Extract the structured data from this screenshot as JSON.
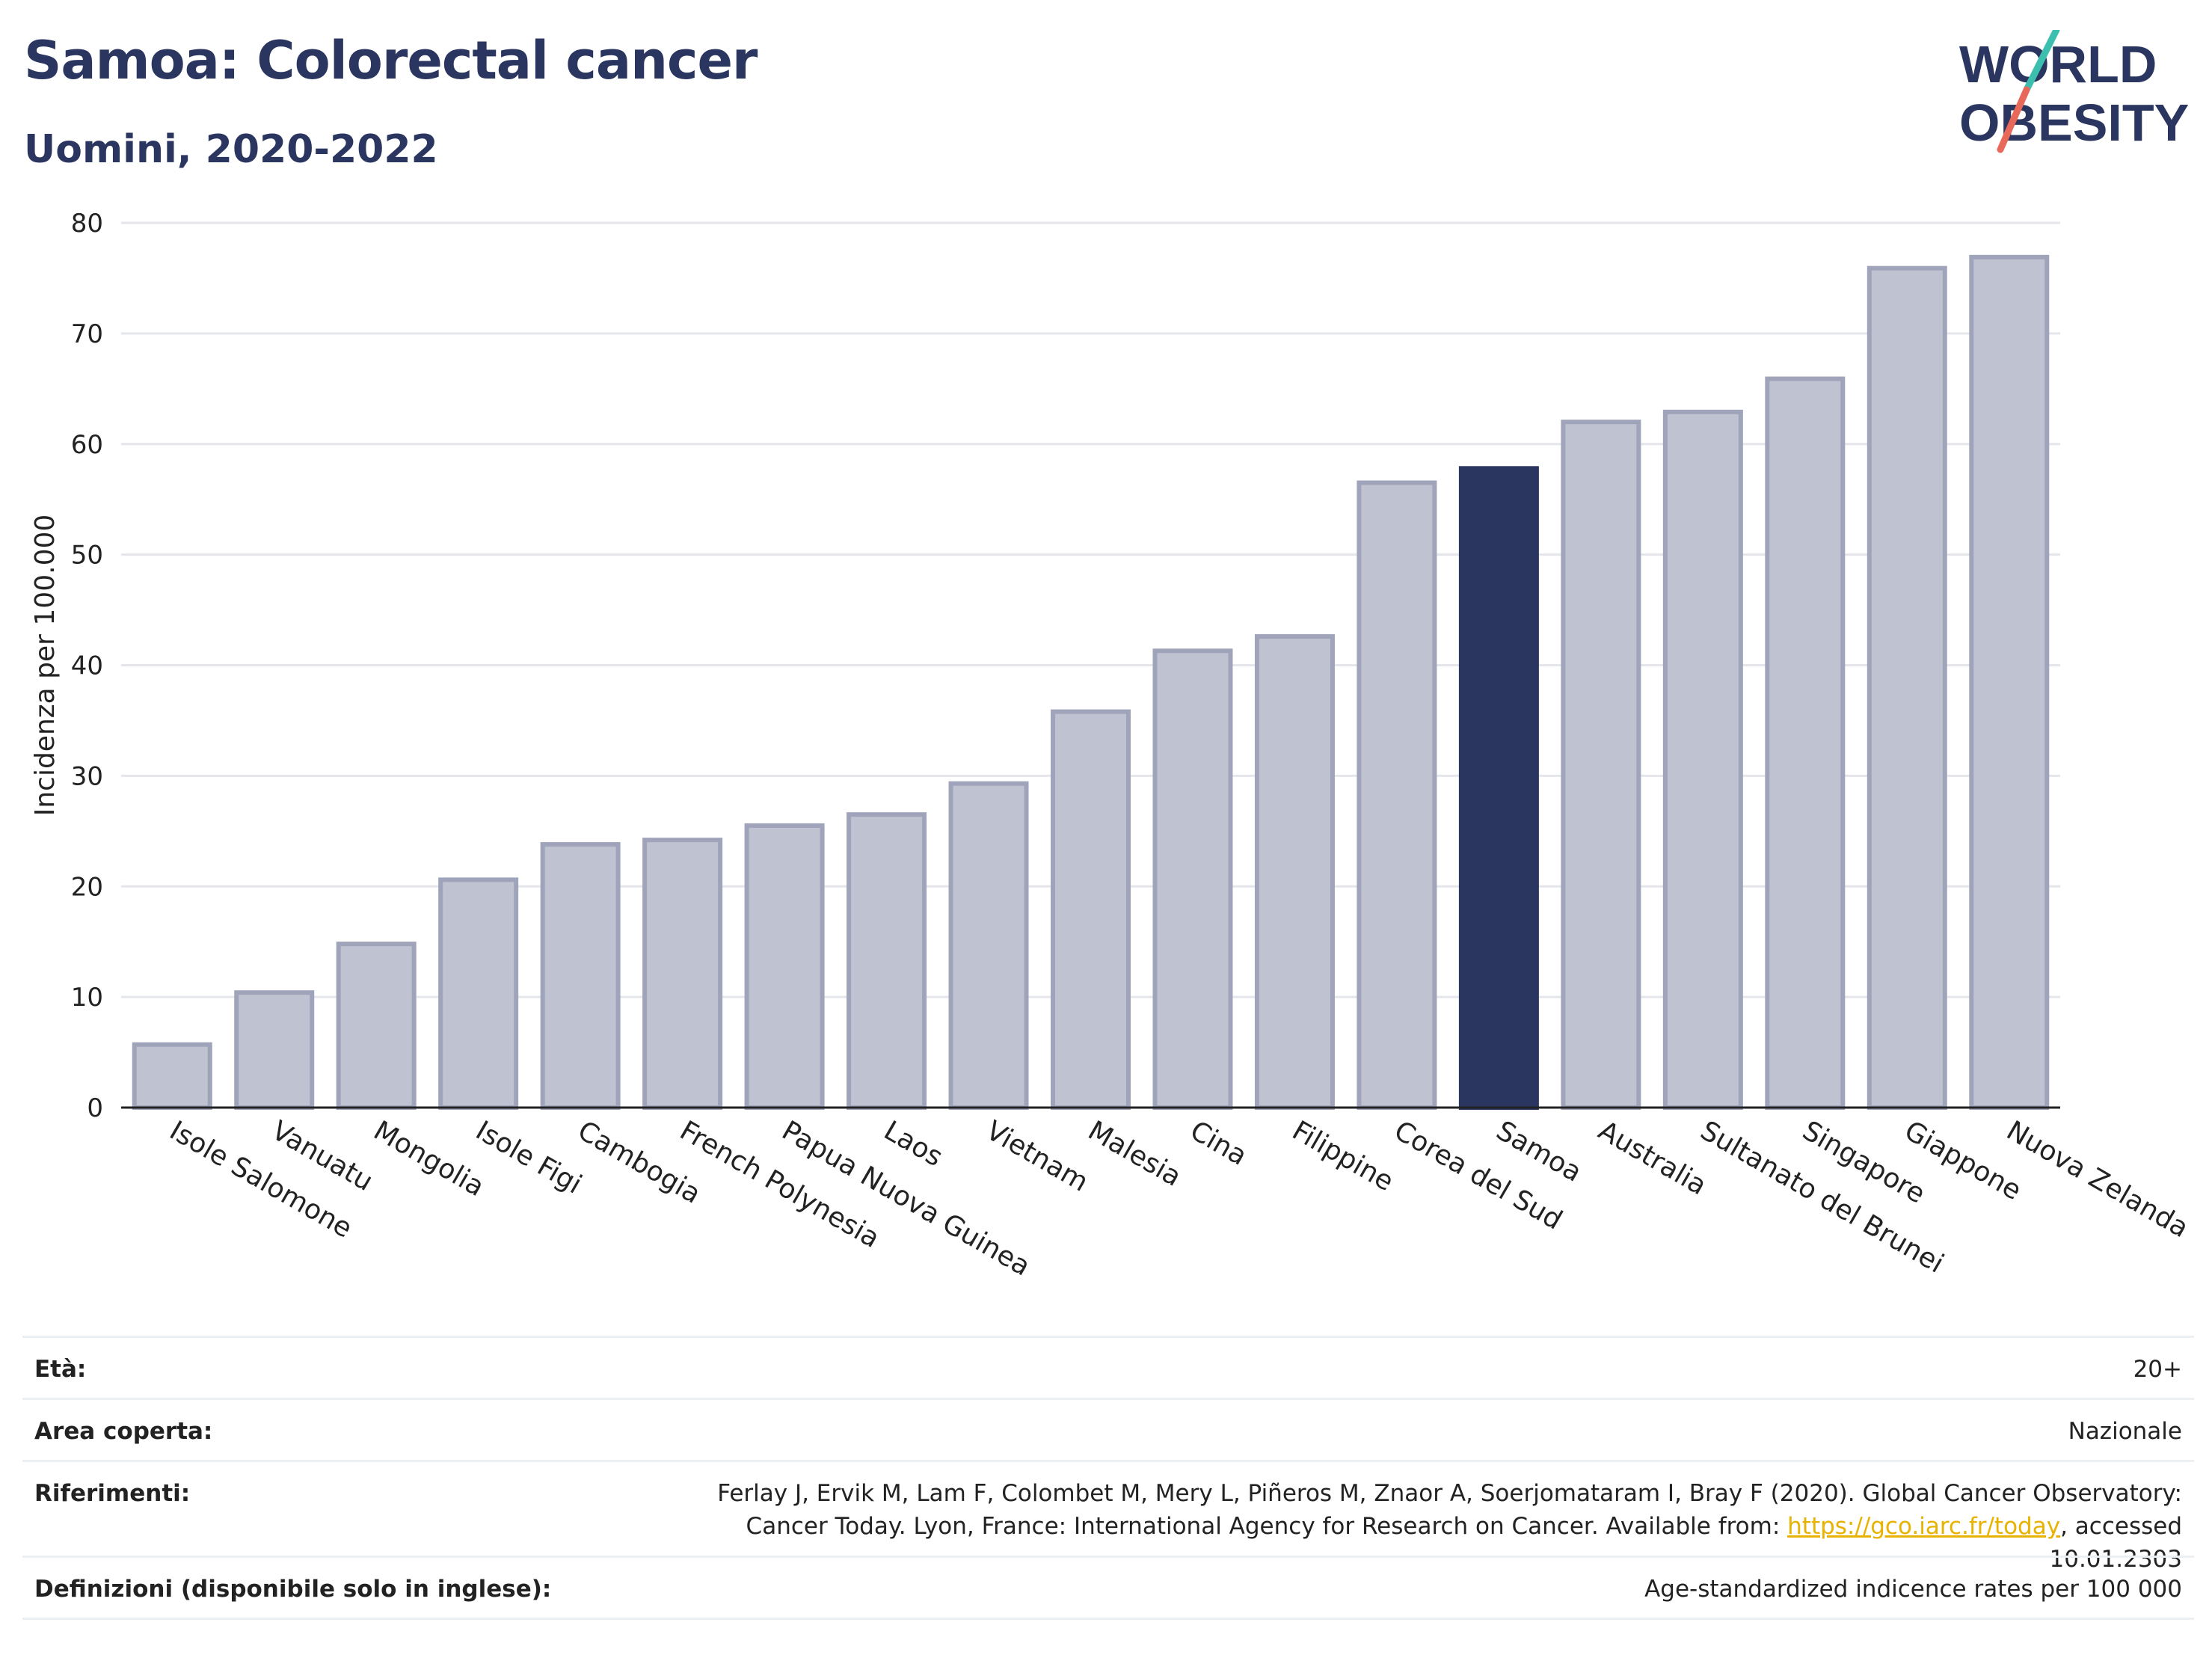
{
  "header": {
    "title": "Samoa: Colorectal cancer",
    "subtitle": "Uomini, 2020-2022"
  },
  "logo": {
    "line1": "WORLD",
    "line2": "OBESITY"
  },
  "chart_data": {
    "type": "bar",
    "ylabel": "Incidenza per 100.000",
    "xlabel": "",
    "ylim": [
      0,
      80
    ],
    "yticks": [
      0,
      10,
      20,
      30,
      40,
      50,
      60,
      70,
      80
    ],
    "grid": true,
    "categories": [
      "Isole Salomone",
      "Vanuatu",
      "Mongolia",
      "Isole Figi",
      "Cambogia",
      "French Polynesia",
      "Papua Nuova Guinea",
      "Laos",
      "Vietnam",
      "Malesia",
      "Cina",
      "Filippine",
      "Corea del Sud",
      "Samoa",
      "Australia",
      "Sultanato del Brunei",
      "Singapore",
      "Giappone",
      "Nuova Zelanda"
    ],
    "values": [
      5.7,
      10.4,
      14.8,
      20.6,
      23.8,
      24.2,
      25.5,
      26.5,
      29.3,
      35.8,
      41.3,
      42.6,
      56.5,
      57.8,
      62.0,
      62.9,
      65.9,
      75.9,
      76.9
    ],
    "highlight": "Samoa",
    "colors": {
      "bar": "#bfc2d0",
      "bar_edge": "#9fa4ba",
      "highlight": "#2a3560"
    }
  },
  "meta": {
    "age_label": "Età:",
    "age_value": "20+",
    "area_label": "Area coperta:",
    "area_value": "Nazionale",
    "refs_label": "Riferimenti:",
    "refs_text_1": "Ferlay J, Ervik M, Lam F, Colombet M, Mery L, Piñeros M, Znaor A, Soerjomataram I, Bray F (2020). Global Cancer Observatory: Cancer Today. Lyon, France: International Agency for Research on Cancer. Available from: ",
    "refs_link": "https://gco.iarc.fr/today",
    "refs_text_2": ", accessed 10.01.2303",
    "defs_label": "Definizioni (disponibile solo in inglese):",
    "defs_value": "Age-standardized indicence rates per 100 000"
  }
}
